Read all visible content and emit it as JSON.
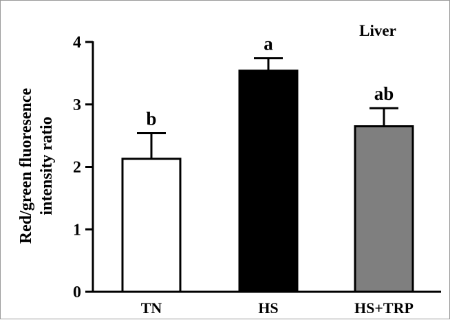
{
  "chart_data": {
    "type": "bar",
    "title": "Liver",
    "xlabel": "",
    "ylabel": "Red/green fluoresence intensity ratio",
    "ylabel_lines": [
      "Red/green fluoresence",
      "intensity ratio"
    ],
    "categories": [
      "TN",
      "HS",
      "HS+TRP"
    ],
    "values": [
      2.13,
      3.54,
      2.65
    ],
    "errors": [
      0.41,
      0.2,
      0.29
    ],
    "significance": [
      "b",
      "a",
      "ab"
    ],
    "bar_colors": [
      "#ffffff",
      "#000000",
      "#7f7f7f"
    ],
    "ylim": [
      0,
      4
    ],
    "yticks": [
      0,
      1,
      2,
      3,
      4
    ],
    "ytick_labels": [
      "0",
      "1",
      "2",
      "3",
      "4"
    ],
    "grid": false,
    "legend": "none"
  }
}
